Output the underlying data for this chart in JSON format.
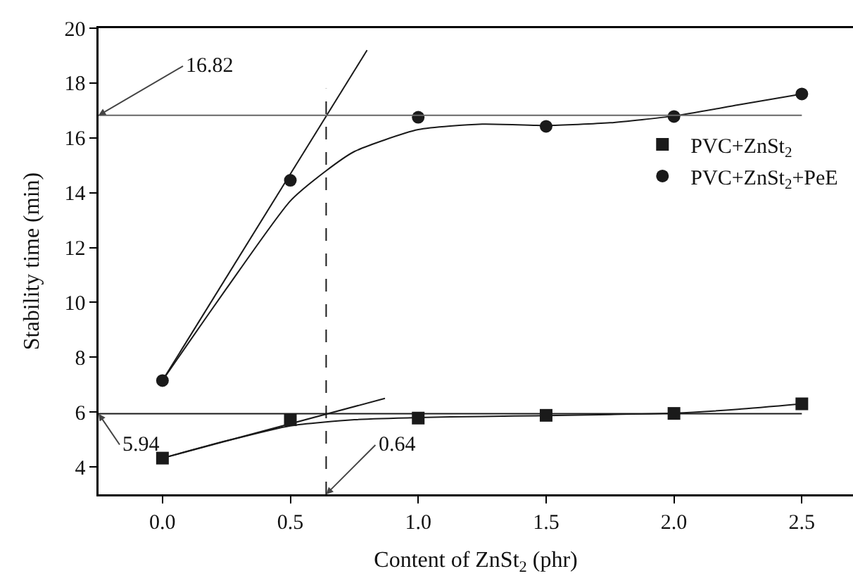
{
  "chart_data": {
    "type": "scatter",
    "xlabel": "Content of ZnSt$_{2}$ (phr)",
    "ylabel": "Stability time (min)",
    "x": [
      0,
      0.5,
      1.0,
      1.5,
      2.0,
      2.5
    ],
    "series": [
      {
        "name": "PVC+ZnSt$_{2}$",
        "color": "#1a1a1a",
        "marker": "square",
        "values": [
          4.32,
          5.72,
          5.78,
          5.88,
          5.95,
          6.3
        ]
      },
      {
        "name": "PVC+ZnSt$_{2}$+PeE",
        "color": "#1a1a1a",
        "marker": "circle",
        "values": [
          7.15,
          14.45,
          16.75,
          16.42,
          16.78,
          17.6
        ]
      },
      {
        "type": "line",
        "color": "#1a1a1a",
        "x": [
          0,
          0.25,
          0.5,
          0.75,
          1.0,
          1.25,
          1.5,
          1.75,
          2.0,
          2.25,
          2.5
        ],
        "values": [
          4.32,
          4.95,
          5.5,
          5.72,
          5.8,
          5.84,
          5.87,
          5.91,
          5.96,
          6.1,
          6.3
        ]
      },
      {
        "type": "line",
        "color": "#1a1a1a",
        "x": [
          0,
          0.1,
          0.25,
          0.5,
          0.64,
          0.75,
          1.0,
          1.25,
          1.5,
          1.75,
          2.0,
          2.25,
          2.5
        ],
        "values": [
          7.15,
          8.5,
          10.5,
          13.7,
          14.8,
          15.5,
          16.3,
          16.5,
          16.45,
          16.55,
          16.8,
          17.2,
          17.6
        ]
      },
      {
        "type": "line",
        "color": "#1a1a1a",
        "x": [
          0,
          0.87
        ],
        "values": [
          4.32,
          6.5
        ]
      },
      {
        "type": "line",
        "color": "#1a1a1a",
        "x": [
          0,
          0.8
        ],
        "values": [
          7.15,
          19.2
        ]
      }
    ],
    "ref_lines": [
      {
        "axis": "y",
        "value": 16.82,
        "label": "16.82",
        "color": "#666666",
        "line_style": "solid"
      },
      {
        "axis": "y",
        "value": 5.94,
        "label": "5.94",
        "color": "#1a1a1a",
        "line_style": "solid"
      },
      {
        "axis": "x",
        "value": 0.64,
        "label": "0.64",
        "color": "#1a1a1a",
        "line_style": "dashed"
      }
    ],
    "xlim": [
      -0.25,
      2.7
    ],
    "ylim": [
      3,
      20
    ],
    "xticks": [
      {
        "value": 0,
        "label": "0.0"
      },
      {
        "value": 0.5,
        "label": "0.5"
      },
      {
        "value": 1.0,
        "label": "1.0"
      },
      {
        "value": 1.5,
        "label": "1.5"
      },
      {
        "value": 2.0,
        "label": "2.0"
      },
      {
        "value": 2.5,
        "label": "2.5"
      }
    ],
    "yticks": [
      4,
      6,
      8,
      10,
      12,
      14,
      16,
      18,
      20
    ],
    "grid": false,
    "legend": "top right",
    "line_style": "solid"
  }
}
